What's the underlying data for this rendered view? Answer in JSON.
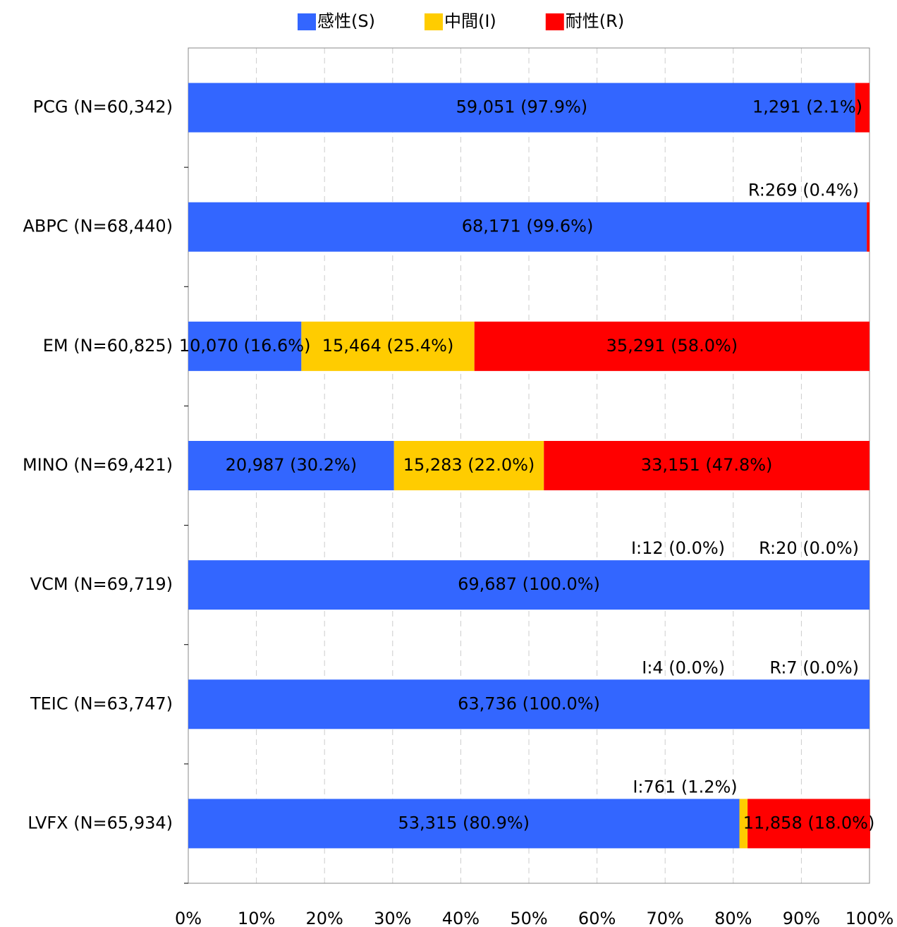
{
  "chart_data": {
    "type": "stacked_bar_horizontal",
    "categories": [
      "PCG (N=60,342)",
      "ABPC (N=68,440)",
      "EM (N=60,825)",
      "MINO (N=69,421)",
      "VCM (N=69,719)",
      "TEIC (N=63,747)",
      "LVFX (N=65,934)"
    ],
    "series": [
      {
        "name": "感性(S)",
        "color": "#3366ff",
        "values": [
          97.9,
          99.6,
          16.6,
          30.2,
          100.0,
          100.0,
          80.9
        ],
        "value_labels": [
          "59,051 (97.9%)",
          "68,171 (99.6%)",
          "10,070 (16.6%)",
          "20,987 (30.2%)",
          "69,687 (100.0%)",
          "63,736 (100.0%)",
          "53,315 (80.9%)"
        ]
      },
      {
        "name": "中間(I)",
        "color": "#ffcc00",
        "values": [
          null,
          null,
          25.4,
          22.0,
          0.0,
          0.0,
          1.2
        ],
        "value_labels": [
          null,
          null,
          "15,464 (25.4%)",
          "15,283 (22.0%)",
          "I:12 (0.0%)",
          "I:4 (0.0%)",
          "I:761 (1.2%)"
        ]
      },
      {
        "name": "耐性(R)",
        "color": "#ff0000",
        "values": [
          2.1,
          0.4,
          58.0,
          47.8,
          0.0,
          0.0,
          18.0
        ],
        "value_labels": [
          "1,291 (2.1%)",
          "R:269 (0.4%)",
          "35,291 (58.0%)",
          "33,151 (47.8%)",
          "R:20 (0.0%)",
          "R:7 (0.0%)",
          "11,858 (18.0%)"
        ]
      }
    ],
    "xlim": [
      0,
      100
    ],
    "xticks": [
      {
        "value": 0,
        "label": "0%"
      },
      {
        "value": 10,
        "label": "10%"
      },
      {
        "value": 20,
        "label": "20%"
      },
      {
        "value": 30,
        "label": "30%"
      },
      {
        "value": 40,
        "label": "40%"
      },
      {
        "value": 50,
        "label": "50%"
      },
      {
        "value": 60,
        "label": "60%"
      },
      {
        "value": 70,
        "label": "70%"
      },
      {
        "value": 80,
        "label": "80%"
      },
      {
        "value": 90,
        "label": "90%"
      },
      {
        "value": 100,
        "label": "100%"
      }
    ],
    "grid": true,
    "legend": "top"
  }
}
